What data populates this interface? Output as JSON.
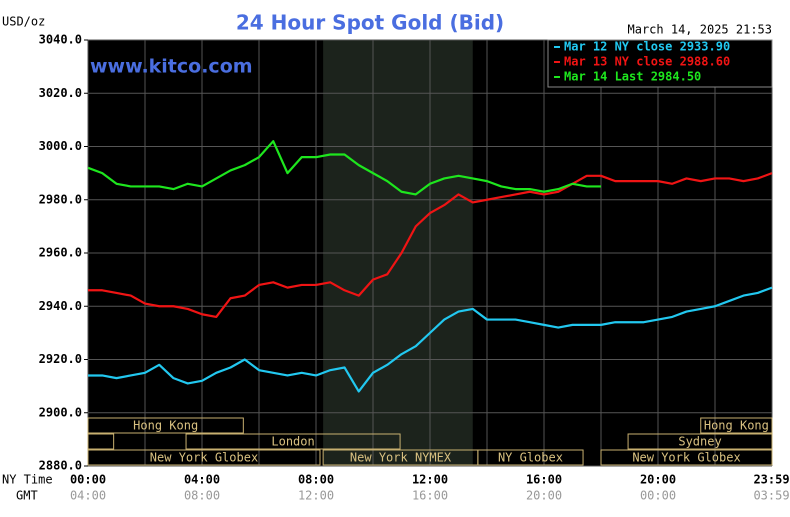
{
  "chart_data": {
    "type": "line",
    "title": "24 Hour Spot Gold (Bid)",
    "timestamp": "March 14, 2025 21:53",
    "watermark": "www.kitco.com",
    "ylabel": "USD/oz",
    "x_row_labels": [
      "NY Time",
      "GMT"
    ],
    "x": [
      0,
      0.5,
      1,
      1.5,
      2,
      2.5,
      3,
      3.5,
      4,
      4.5,
      5,
      5.5,
      6,
      6.5,
      7,
      7.5,
      8,
      8.5,
      9,
      9.5,
      10,
      10.5,
      11,
      11.5,
      12,
      12.5,
      13,
      13.5,
      14,
      14.5,
      15,
      15.5,
      16,
      16.5,
      17,
      17.5,
      18,
      18.5,
      19,
      19.5,
      20,
      20.5,
      21,
      21.5,
      22,
      22.5,
      23,
      23.5,
      24
    ],
    "series": [
      {
        "name": "Mar 12 NY close 2933.90",
        "color": "#22c8f0",
        "values": [
          2914,
          2914,
          2913,
          2914,
          2915,
          2918,
          2913,
          2911,
          2912,
          2915,
          2917,
          2920,
          2916,
          2915,
          2914,
          2915,
          2914,
          2916,
          2917,
          2908,
          2915,
          2918,
          2922,
          2925,
          2930,
          2935,
          2938,
          2939,
          2935,
          2935,
          2935,
          2934,
          2933,
          2932,
          2933,
          2933,
          2933,
          2934,
          2934,
          2934,
          2935,
          2936,
          2938,
          2939,
          2940,
          2942,
          2944,
          2945,
          2947
        ]
      },
      {
        "name": "Mar 13 NY close 2988.60",
        "color": "#f01414",
        "values": [
          2946,
          2946,
          2945,
          2944,
          2941,
          2940,
          2940,
          2939,
          2937,
          2936,
          2943,
          2944,
          2948,
          2949,
          2947,
          2948,
          2948,
          2949,
          2946,
          2944,
          2950,
          2952,
          2960,
          2970,
          2975,
          2978,
          2982,
          2979,
          2980,
          2981,
          2982,
          2983,
          2982,
          2983,
          2986,
          2989,
          2989,
          2987,
          2987,
          2987,
          2987,
          2986,
          2988,
          2987,
          2988,
          2988,
          2987,
          2988,
          2990
        ]
      },
      {
        "name": "Mar 14 Last 2984.50",
        "color": "#1ee61e",
        "values": [
          2992,
          2990,
          2986,
          2985,
          2985,
          2985,
          2984,
          2986,
          2985,
          2988,
          2991,
          2993,
          2996,
          3002,
          2990,
          2996,
          2996,
          2997,
          2997,
          2993,
          2990,
          2987,
          2983,
          2982,
          2986,
          2988,
          2989,
          2988,
          2987,
          2985,
          2984,
          2984,
          2983,
          2984,
          2986,
          2985,
          2985,
          null,
          null,
          null,
          null,
          null,
          null,
          null,
          null,
          null,
          null,
          null,
          null
        ]
      }
    ],
    "xlim": [
      0,
      24
    ],
    "xticks": [
      {
        "value": 0,
        "label": "00:00"
      },
      {
        "value": 4,
        "label": "04:00"
      },
      {
        "value": 8,
        "label": "08:00"
      },
      {
        "value": 12,
        "label": "12:00"
      },
      {
        "value": 16,
        "label": "16:00"
      },
      {
        "value": 20,
        "label": "20:00"
      },
      {
        "value": 23.983,
        "label": "23:59"
      }
    ],
    "xticks_gmt": [
      "04:00",
      "08:00",
      "12:00",
      "16:00",
      "20:00",
      "00:00",
      "03:59"
    ],
    "xgrid": [
      0,
      2,
      4,
      6,
      8,
      10,
      12,
      14,
      16,
      18,
      20,
      22,
      24
    ],
    "ylim": [
      2880,
      3040
    ],
    "yticks": [
      {
        "value": 2880,
        "label": "2880.0"
      },
      {
        "value": 2900,
        "label": "2900.0"
      },
      {
        "value": 2920,
        "label": "2920.0"
      },
      {
        "value": 2940,
        "label": "2940.0"
      },
      {
        "value": 2960,
        "label": "2960.0"
      },
      {
        "value": 2980,
        "label": "2980.0"
      },
      {
        "value": 3000,
        "label": "3000.0"
      },
      {
        "value": 3020,
        "label": "3020.0"
      },
      {
        "value": 3040,
        "label": "3040.0"
      }
    ],
    "shade": [
      8.25,
      13.5
    ],
    "sessions": [
      {
        "label": "Hong Kong",
        "start": 0,
        "end": 5.45,
        "row": 1
      },
      {
        "label": "Hong Kong",
        "start": 21.5,
        "end": 24,
        "row": 1
      },
      {
        "start": 0,
        "end": 0.9,
        "row": 2
      },
      {
        "label": "London",
        "start": 3.44,
        "end": 10.95,
        "row": 2
      },
      {
        "label": "Sydney",
        "start": 18.95,
        "end": 24,
        "row": 2
      },
      {
        "label": "New York Globex",
        "start": 0,
        "end": 8.14,
        "row": 3
      },
      {
        "label": "New York NYMEX",
        "start": 8.25,
        "end": 13.68,
        "row": 3
      },
      {
        "label": "NY Globex",
        "start": 13.68,
        "end": 17.37,
        "row": 3
      },
      {
        "label": "New York Globex",
        "start": 18,
        "end": 24,
        "row": 3
      }
    ],
    "grid": true
  }
}
